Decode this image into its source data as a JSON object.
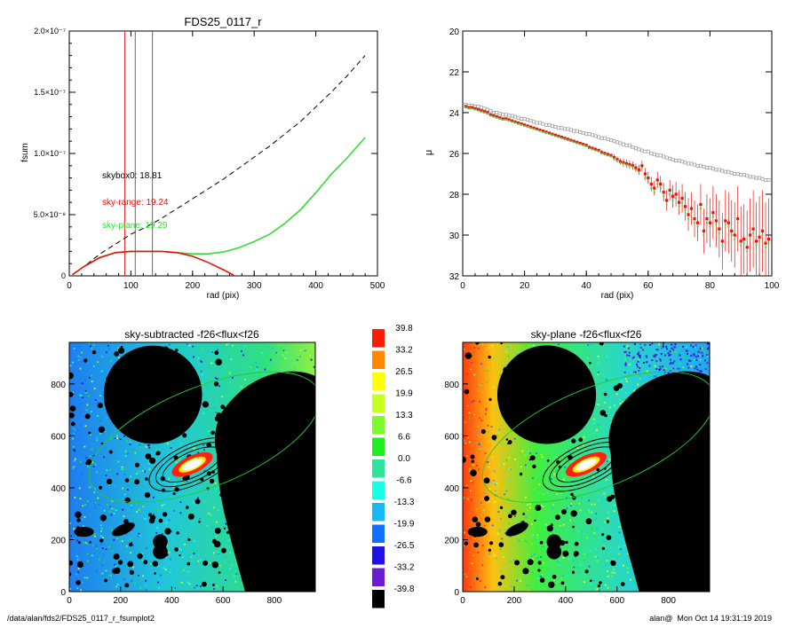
{
  "footer": {
    "path": "/data/alan/fds2/FDS25_0117_r_fsumplot2",
    "user": "alan@",
    "timestamp": "Mon Oct 14 19:31:19 2019"
  },
  "colors": {
    "skybox0": "#000000",
    "sky_range": "#e8120c",
    "sky_plane": "#33dd33",
    "model_points": "#999999",
    "mask": "#000000"
  },
  "chart_data": [
    {
      "id": "fsum",
      "type": "line",
      "title": "FDS25_0117_r",
      "xlabel": "rad (pix)",
      "ylabel": "fsum",
      "xlim": [
        0,
        500
      ],
      "ylim": [
        0,
        2e-07
      ],
      "xticks": [
        "0",
        "100",
        "200",
        "300",
        "400",
        "500"
      ],
      "yticks": [
        "0",
        "5.0×10⁻⁸",
        "1.0×10⁻⁷",
        "1.5×10⁻⁷",
        "2.0×10⁻⁷"
      ],
      "yticks_values": [
        0,
        5e-08,
        1e-07,
        1.5e-07,
        2e-07
      ],
      "vlines": [
        {
          "x": 90,
          "color": "#e8120c"
        },
        {
          "x": 107,
          "color": "#555555"
        },
        {
          "x": 135,
          "color": "#555555"
        }
      ],
      "annotations": [
        {
          "text": "skybox0: 18.81",
          "color": "#000000"
        },
        {
          "text": "sky-range: 19.24",
          "color": "#e8120c"
        },
        {
          "text": "sky-plane: 19.29",
          "color": "#33dd33"
        }
      ],
      "series": [
        {
          "style": "dashed",
          "color": "#000000",
          "x": [
            5,
            25,
            50,
            75,
            100,
            125,
            150,
            175,
            200,
            225,
            250,
            275,
            300,
            325,
            350,
            375,
            400,
            425,
            450,
            480
          ],
          "y": [
            1e-09,
            8e-09,
            1.8e-08,
            2.6e-08,
            3.4e-08,
            4e-08,
            4.7e-08,
            5.5e-08,
            6.3e-08,
            7.1e-08,
            7.9e-08,
            8.8e-08,
            9.7e-08,
            1.06e-07,
            1.16e-07,
            1.26e-07,
            1.38e-07,
            1.5e-07,
            1.63e-07,
            1.8e-07
          ]
        },
        {
          "style": "solid",
          "color": "#33dd33",
          "x": [
            5,
            25,
            50,
            75,
            100,
            125,
            150,
            175,
            200,
            225,
            250,
            275,
            300,
            325,
            350,
            375,
            400,
            425,
            450,
            480
          ],
          "y": [
            1e-09,
            8e-09,
            1.5e-08,
            1.9e-08,
            2e-08,
            2e-08,
            2e-08,
            1.9e-08,
            1.8e-08,
            1.8e-08,
            1.95e-08,
            2.3e-08,
            2.8e-08,
            3.4e-08,
            4.3e-08,
            5.4e-08,
            6.8e-08,
            8.3e-08,
            9.6e-08,
            1.13e-07
          ]
        },
        {
          "style": "solid",
          "color": "#e8120c",
          "x": [
            5,
            25,
            50,
            75,
            100,
            125,
            150,
            175,
            200,
            225,
            250,
            265,
            275
          ],
          "y": [
            1e-09,
            8e-09,
            1.5e-08,
            1.9e-08,
            2e-08,
            2e-08,
            2e-08,
            1.9e-08,
            1.6e-08,
            1.1e-08,
            5e-09,
            1e-09,
            -3e-09
          ]
        }
      ]
    },
    {
      "id": "mu",
      "type": "scatter",
      "title": "",
      "xlabel": "rad (pix)",
      "ylabel": "μ",
      "xlim": [
        0,
        100
      ],
      "ylim": [
        32,
        20
      ],
      "xticks": [
        "0",
        "20",
        "40",
        "60",
        "80",
        "100"
      ],
      "yticks": [
        "20",
        "22",
        "24",
        "26",
        "28",
        "30",
        "32"
      ],
      "series": [
        {
          "marker": "open-square",
          "color": "#999999",
          "x": [
            1,
            2,
            3,
            4,
            5,
            6,
            7,
            8,
            9,
            10,
            11,
            12,
            13,
            14,
            15,
            16,
            17,
            18,
            19,
            20,
            21,
            22,
            23,
            24,
            25,
            26,
            27,
            28,
            29,
            30,
            31,
            32,
            33,
            34,
            35,
            36,
            37,
            38,
            39,
            40,
            41,
            42,
            43,
            44,
            45,
            46,
            47,
            48,
            49,
            50,
            51,
            52,
            53,
            54,
            55,
            56,
            57,
            58,
            59,
            60,
            61,
            62,
            63,
            64,
            65,
            66,
            67,
            68,
            69,
            70,
            71,
            72,
            73,
            74,
            75,
            76,
            77,
            78,
            79,
            80,
            81,
            82,
            83,
            84,
            85,
            86,
            87,
            88,
            89,
            90,
            91,
            92,
            93,
            94,
            95,
            96,
            97,
            98,
            99
          ],
          "y": [
            23.6,
            23.65,
            23.65,
            23.7,
            23.7,
            23.75,
            23.8,
            23.85,
            23.9,
            24.0,
            24.0,
            24.05,
            24.1,
            24.1,
            24.15,
            24.15,
            24.2,
            24.25,
            24.3,
            24.3,
            24.35,
            24.4,
            24.45,
            24.5,
            24.5,
            24.55,
            24.6,
            24.6,
            24.65,
            24.7,
            24.75,
            24.75,
            24.8,
            24.8,
            24.85,
            24.9,
            24.9,
            24.95,
            25.0,
            25.05,
            25.05,
            25.1,
            25.15,
            25.2,
            25.25,
            25.25,
            25.3,
            25.35,
            25.4,
            25.45,
            25.5,
            25.55,
            25.6,
            25.6,
            25.7,
            25.75,
            25.8,
            25.85,
            25.9,
            25.9,
            26.0,
            26.05,
            26.1,
            26.1,
            26.15,
            26.2,
            26.25,
            26.3,
            26.35,
            26.35,
            26.4,
            26.45,
            26.5,
            26.5,
            26.55,
            26.6,
            26.6,
            26.65,
            26.7,
            26.7,
            26.75,
            26.8,
            26.8,
            26.85,
            26.9,
            26.9,
            26.95,
            27.0,
            27.0,
            27.05,
            27.05,
            27.1,
            27.15,
            27.15,
            27.2,
            27.2,
            27.25,
            27.3,
            27.3
          ]
        },
        {
          "marker": "filled-square",
          "color": "#e8120c",
          "x": [
            1,
            2,
            3,
            4,
            5,
            6,
            7,
            8,
            9,
            10,
            11,
            12,
            13,
            14,
            15,
            16,
            17,
            18,
            19,
            20,
            21,
            22,
            23,
            24,
            25,
            26,
            27,
            28,
            29,
            30,
            31,
            32,
            33,
            34,
            35,
            36,
            37,
            38,
            39,
            40,
            41,
            42,
            43,
            44,
            45,
            46,
            47,
            48,
            49,
            50,
            51,
            52,
            53,
            54,
            55,
            56,
            57,
            58,
            59,
            60,
            61,
            62,
            63,
            64,
            65,
            66,
            67,
            68,
            69,
            70,
            71,
            72,
            73,
            74,
            75,
            76,
            77,
            78,
            79,
            80,
            81,
            82,
            83,
            84,
            85,
            86,
            87,
            88,
            89,
            90,
            91,
            92,
            93,
            94,
            95,
            96,
            97,
            98,
            99
          ],
          "y": [
            23.7,
            23.75,
            23.75,
            23.8,
            23.85,
            23.9,
            23.95,
            24.0,
            24.1,
            24.15,
            24.2,
            24.25,
            24.3,
            24.3,
            24.35,
            24.4,
            24.45,
            24.5,
            24.55,
            24.6,
            24.65,
            24.7,
            24.75,
            24.8,
            24.85,
            24.9,
            24.95,
            25.0,
            25.05,
            25.1,
            25.15,
            25.2,
            25.25,
            25.3,
            25.35,
            25.4,
            25.45,
            25.5,
            25.55,
            25.6,
            25.7,
            25.75,
            25.8,
            25.85,
            25.95,
            26.0,
            26.05,
            26.1,
            26.2,
            26.3,
            26.4,
            26.45,
            26.5,
            26.55,
            26.6,
            26.7,
            26.8,
            26.6,
            27.0,
            27.2,
            27.5,
            27.7,
            27.3,
            27.5,
            27.9,
            28.3,
            27.8,
            28.1,
            28.0,
            28.4,
            28.2,
            28.6,
            29.0,
            28.7,
            29.2,
            29.4,
            28.5,
            29.8,
            29.2,
            29.4,
            28.9,
            29.3,
            29.7,
            30.3,
            29.3,
            29.4,
            29.8,
            30.0,
            29.2,
            30.3,
            30.2,
            30.6,
            30.0,
            29.7,
            30.3,
            30.1,
            29.8,
            30.4,
            30.2
          ],
          "yerr": [
            0.05,
            0.05,
            0.05,
            0.05,
            0.05,
            0.05,
            0.05,
            0.05,
            0.05,
            0.05,
            0.05,
            0.05,
            0.05,
            0.05,
            0.05,
            0.05,
            0.05,
            0.05,
            0.05,
            0.05,
            0.05,
            0.05,
            0.05,
            0.05,
            0.05,
            0.05,
            0.05,
            0.05,
            0.05,
            0.05,
            0.05,
            0.05,
            0.05,
            0.05,
            0.05,
            0.05,
            0.05,
            0.05,
            0.05,
            0.05,
            0.1,
            0.1,
            0.1,
            0.1,
            0.1,
            0.1,
            0.1,
            0.1,
            0.15,
            0.15,
            0.15,
            0.2,
            0.2,
            0.2,
            0.2,
            0.2,
            0.25,
            0.25,
            0.3,
            0.3,
            0.35,
            0.35,
            0.4,
            0.4,
            0.45,
            0.5,
            0.5,
            0.55,
            0.6,
            0.6,
            0.7,
            0.7,
            0.8,
            0.8,
            0.9,
            0.9,
            1.0,
            1.1,
            1.2,
            1.2,
            1.3,
            1.3,
            1.4,
            1.4,
            1.5,
            1.5,
            1.5,
            1.6,
            1.6,
            1.7,
            1.7,
            1.8,
            1.8,
            1.9,
            1.9,
            2.0,
            2.0,
            2.0,
            2.0
          ]
        },
        {
          "marker": "dot",
          "color": "#33dd33",
          "x": [
            1,
            2,
            3,
            4,
            5,
            6,
            7,
            8,
            9,
            10,
            11,
            12,
            13,
            14,
            15,
            16,
            17,
            18,
            19,
            20,
            21,
            22,
            23,
            24,
            25,
            26,
            27,
            28,
            29,
            30,
            31,
            32,
            33,
            34,
            35,
            36,
            37,
            38,
            39,
            40,
            41,
            42,
            43,
            44,
            45,
            46,
            47,
            48,
            49,
            50,
            51,
            52,
            53,
            54,
            55,
            56,
            57,
            58,
            59,
            60,
            61,
            62,
            63,
            64,
            65,
            66,
            67,
            68,
            69,
            70,
            71,
            72,
            73,
            74,
            75,
            76,
            77,
            78,
            79,
            80,
            81,
            82,
            83,
            84,
            85,
            86,
            87,
            88,
            89,
            90,
            91,
            92,
            93,
            94,
            95,
            96,
            97,
            98,
            99
          ],
          "y": [
            23.75,
            23.8,
            23.8,
            23.85,
            23.9,
            23.95,
            24.0,
            24.05,
            24.15,
            24.2,
            24.25,
            24.3,
            24.35,
            24.35,
            24.4,
            24.45,
            24.5,
            24.55,
            24.6,
            24.65,
            24.7,
            24.75,
            24.8,
            24.85,
            24.9,
            24.95,
            25.0,
            25.05,
            25.1,
            25.15,
            25.2,
            25.25,
            25.3,
            25.35,
            25.4,
            25.45,
            25.5,
            25.55,
            25.6,
            25.65,
            25.75,
            25.8,
            25.85,
            25.9,
            26.0,
            26.05,
            26.1,
            26.15,
            26.25,
            26.35,
            26.45,
            26.5,
            26.55,
            26.6,
            26.65,
            26.8,
            26.9,
            26.7,
            27.2,
            27.4,
            27.7,
            27.9,
            27.5,
            27.7,
            28.1,
            28.5,
            28.0,
            28.3,
            28.2,
            28.6,
            28.4,
            28.8,
            29.2,
            28.9,
            29.4,
            29.6,
            28.7,
            30.0,
            29.4,
            29.6,
            29.1,
            29.5,
            29.9,
            30.5,
            29.5,
            29.6,
            30.0,
            30.2,
            29.4,
            30.5,
            30.4,
            30.8,
            30.2,
            29.9,
            30.5,
            30.3,
            30.0,
            30.6,
            30.4
          ]
        }
      ]
    },
    {
      "id": "sky-subtracted",
      "type": "heatmap",
      "title": "sky-subtracted -f26<flux<f26",
      "xlim": [
        0,
        960
      ],
      "ylim": [
        0,
        960
      ],
      "xticks": [
        "0",
        "200",
        "400",
        "600",
        "800"
      ],
      "yticks": [
        "0",
        "200",
        "400",
        "600",
        "800"
      ]
    },
    {
      "id": "colorbar",
      "type": "heatmap",
      "levels": [
        "39.8",
        "33.2",
        "26.5",
        "19.9",
        "13.3",
        "6.6",
        "0.0",
        "-6.6",
        "-13.3",
        "-19.9",
        "-26.5",
        "-33.2",
        "-39.8"
      ],
      "colors": [
        "#ff1a00",
        "#ff8800",
        "#ffff00",
        "#c8ff20",
        "#7dfa2a",
        "#20ee20",
        "#2ee49a",
        "#18ffe8",
        "#18b8f8",
        "#1070ff",
        "#2010e8",
        "#6a1cd0",
        "#480060"
      ]
    },
    {
      "id": "sky-plane",
      "type": "heatmap",
      "title": "sky-plane -f26<flux<f26",
      "xlim": [
        0,
        960
      ],
      "ylim": [
        0,
        960
      ],
      "xticks": [
        "0",
        "200",
        "400",
        "600",
        "800"
      ],
      "yticks": [
        "0",
        "200",
        "400",
        "600",
        "800"
      ]
    }
  ]
}
